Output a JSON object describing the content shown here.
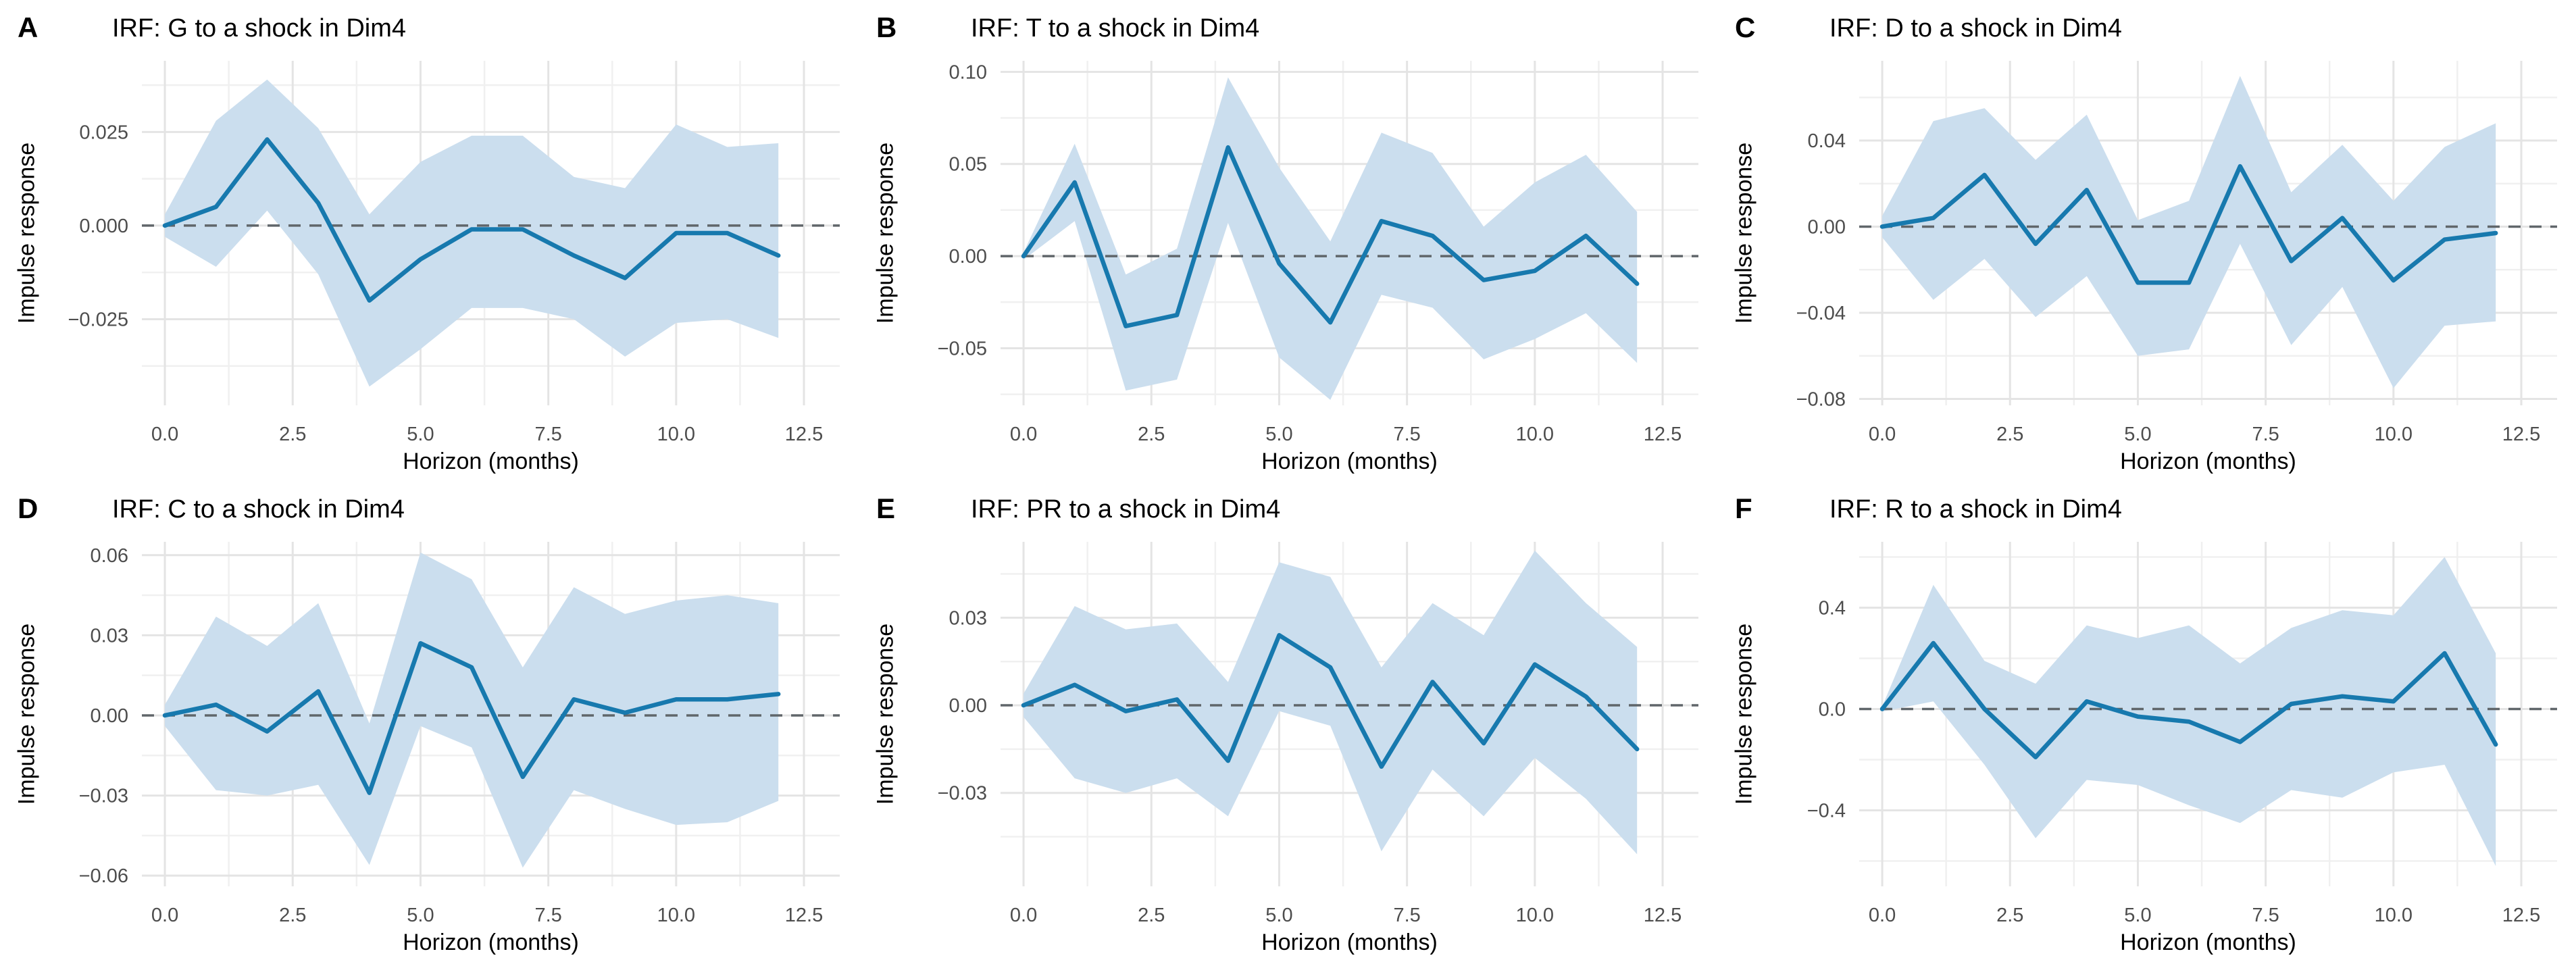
{
  "figure": {
    "background": "#ffffff",
    "line_color": "#1779ae",
    "ribbon_color": "#cbdeee",
    "zero_line_color": "#60666a",
    "grid_major_color": "#e4e4e4",
    "grid_minor_color": "#f0f0f0",
    "tick_label_color": "#4d4d4d",
    "text_color": "#000000",
    "xlabel": "Horizon (months)",
    "ylabel": "Impulse response"
  },
  "chart_data": [
    {
      "type": "line",
      "panel_label": "A",
      "title": "IRF: G to a shock in Dim4",
      "xlabel": "Horizon (months)",
      "ylabel": "Impulse response",
      "legend": "none",
      "grid": true,
      "zero_line": true,
      "x": [
        0,
        1,
        2,
        3,
        4,
        5,
        6,
        7,
        8,
        9,
        10,
        11,
        12
      ],
      "series": [
        {
          "name": "irf",
          "values": [
            0.0,
            0.005,
            0.023,
            0.006,
            -0.02,
            -0.009,
            -0.001,
            -0.001,
            -0.008,
            -0.014,
            -0.002,
            -0.002,
            -0.008
          ]
        },
        {
          "name": "ci_upper",
          "values": [
            0.003,
            0.028,
            0.039,
            0.026,
            0.003,
            0.017,
            0.024,
            0.024,
            0.013,
            0.01,
            0.027,
            0.021,
            0.022
          ]
        },
        {
          "name": "ci_lower",
          "values": [
            -0.003,
            -0.011,
            0.004,
            -0.013,
            -0.043,
            -0.033,
            -0.022,
            -0.022,
            -0.025,
            -0.035,
            -0.026,
            -0.025,
            -0.03
          ]
        }
      ],
      "xlim": [
        -0.45,
        13.2
      ],
      "ylim": [
        -0.048,
        0.044
      ],
      "x_ticks": {
        "values": [
          0,
          2.5,
          5,
          7.5,
          10,
          12.5
        ],
        "labels": [
          "0.0",
          "2.5",
          "5.0",
          "7.5",
          "10.0",
          "12.5"
        ]
      },
      "y_ticks": {
        "values": [
          0.025,
          0,
          -0.025
        ],
        "labels": [
          "0.025",
          "0.000",
          "−0.025"
        ]
      }
    },
    {
      "type": "line",
      "panel_label": "B",
      "title": "IRF: T to a shock in Dim4",
      "xlabel": "Horizon (months)",
      "ylabel": "Impulse response",
      "legend": "none",
      "grid": true,
      "zero_line": true,
      "x": [
        0,
        1,
        2,
        3,
        4,
        5,
        6,
        7,
        8,
        9,
        10,
        11,
        12
      ],
      "series": [
        {
          "name": "irf",
          "values": [
            0.0,
            0.04,
            -0.038,
            -0.032,
            0.059,
            -0.004,
            -0.036,
            0.019,
            0.011,
            -0.013,
            -0.008,
            0.011,
            -0.015
          ]
        },
        {
          "name": "ci_upper",
          "values": [
            0.002,
            0.061,
            -0.01,
            0.004,
            0.097,
            0.048,
            0.008,
            0.067,
            0.056,
            0.016,
            0.04,
            0.055,
            0.024
          ]
        },
        {
          "name": "ci_lower",
          "values": [
            -0.002,
            0.019,
            -0.073,
            -0.067,
            0.018,
            -0.055,
            -0.078,
            -0.021,
            -0.028,
            -0.056,
            -0.045,
            -0.031,
            -0.058
          ]
        }
      ],
      "xlim": [
        -0.45,
        13.2
      ],
      "ylim": [
        -0.081,
        0.106
      ],
      "x_ticks": {
        "values": [
          0,
          2.5,
          5,
          7.5,
          10,
          12.5
        ],
        "labels": [
          "0.0",
          "2.5",
          "5.0",
          "7.5",
          "10.0",
          "12.5"
        ]
      },
      "y_ticks": {
        "values": [
          0.1,
          0.05,
          0,
          -0.05
        ],
        "labels": [
          "0.10",
          "0.05",
          "0.00",
          "−0.05"
        ]
      }
    },
    {
      "type": "line",
      "panel_label": "C",
      "title": "IRF: D to a shock in Dim4",
      "xlabel": "Horizon (months)",
      "ylabel": "Impulse response",
      "legend": "none",
      "grid": true,
      "zero_line": true,
      "x": [
        0,
        1,
        2,
        3,
        4,
        5,
        6,
        7,
        8,
        9,
        10,
        11,
        12
      ],
      "series": [
        {
          "name": "irf",
          "values": [
            0.0,
            0.004,
            0.024,
            -0.008,
            0.017,
            -0.026,
            -0.026,
            0.028,
            -0.016,
            0.004,
            -0.025,
            -0.006,
            -0.003
          ]
        },
        {
          "name": "ci_upper",
          "values": [
            0.005,
            0.049,
            0.055,
            0.031,
            0.052,
            0.003,
            0.012,
            0.07,
            0.016,
            0.038,
            0.012,
            0.037,
            0.048
          ]
        },
        {
          "name": "ci_lower",
          "values": [
            -0.005,
            -0.034,
            -0.015,
            -0.042,
            -0.023,
            -0.06,
            -0.057,
            -0.008,
            -0.055,
            -0.028,
            -0.075,
            -0.046,
            -0.044
          ]
        }
      ],
      "xlim": [
        -0.45,
        13.2
      ],
      "ylim": [
        -0.083,
        0.077
      ],
      "x_ticks": {
        "values": [
          0,
          2.5,
          5,
          7.5,
          10,
          12.5
        ],
        "labels": [
          "0.0",
          "2.5",
          "5.0",
          "7.5",
          "10.0",
          "12.5"
        ]
      },
      "y_ticks": {
        "values": [
          0.04,
          0,
          -0.04,
          -0.08
        ],
        "labels": [
          "0.04",
          "0.00",
          "−0.04",
          "−0.08"
        ]
      }
    },
    {
      "type": "line",
      "panel_label": "D",
      "title": "IRF: C to a shock in Dim4",
      "xlabel": "Horizon (months)",
      "ylabel": "Impulse response",
      "legend": "none",
      "grid": true,
      "zero_line": true,
      "x": [
        0,
        1,
        2,
        3,
        4,
        5,
        6,
        7,
        8,
        9,
        10,
        11,
        12
      ],
      "series": [
        {
          "name": "irf",
          "values": [
            0.0,
            0.004,
            -0.006,
            0.009,
            -0.029,
            0.027,
            0.018,
            -0.023,
            0.006,
            0.001,
            0.006,
            0.006,
            0.008
          ]
        },
        {
          "name": "ci_upper",
          "values": [
            0.004,
            0.037,
            0.026,
            0.042,
            -0.003,
            0.061,
            0.051,
            0.018,
            0.048,
            0.038,
            0.043,
            0.045,
            0.042
          ]
        },
        {
          "name": "ci_lower",
          "values": [
            -0.004,
            -0.028,
            -0.03,
            -0.026,
            -0.056,
            -0.004,
            -0.012,
            -0.057,
            -0.028,
            -0.035,
            -0.041,
            -0.04,
            -0.032
          ]
        }
      ],
      "xlim": [
        -0.45,
        13.2
      ],
      "ylim": [
        -0.064,
        0.065
      ],
      "x_ticks": {
        "values": [
          0,
          2.5,
          5,
          7.5,
          10,
          12.5
        ],
        "labels": [
          "0.0",
          "2.5",
          "5.0",
          "7.5",
          "10.0",
          "12.5"
        ]
      },
      "y_ticks": {
        "values": [
          0.06,
          0.03,
          0,
          -0.03,
          -0.06
        ],
        "labels": [
          "0.06",
          "0.03",
          "0.00",
          "−0.03",
          "−0.06"
        ]
      }
    },
    {
      "type": "line",
      "panel_label": "E",
      "title": "IRF: PR to a shock in Dim4",
      "xlabel": "Horizon (months)",
      "ylabel": "Impulse response",
      "legend": "none",
      "grid": true,
      "zero_line": true,
      "x": [
        0,
        1,
        2,
        3,
        4,
        5,
        6,
        7,
        8,
        9,
        10,
        11,
        12
      ],
      "series": [
        {
          "name": "irf",
          "values": [
            0.0,
            0.007,
            -0.002,
            0.002,
            -0.019,
            0.024,
            0.013,
            -0.021,
            0.008,
            -0.013,
            0.014,
            0.003,
            -0.015
          ]
        },
        {
          "name": "ci_upper",
          "values": [
            0.004,
            0.034,
            0.026,
            0.028,
            0.008,
            0.049,
            0.044,
            0.013,
            0.035,
            0.024,
            0.053,
            0.035,
            0.02
          ]
        },
        {
          "name": "ci_lower",
          "values": [
            -0.004,
            -0.025,
            -0.03,
            -0.025,
            -0.038,
            -0.002,
            -0.007,
            -0.05,
            -0.022,
            -0.038,
            -0.018,
            -0.032,
            -0.051
          ]
        }
      ],
      "xlim": [
        -0.45,
        13.2
      ],
      "ylim": [
        -0.062,
        0.056
      ],
      "x_ticks": {
        "values": [
          0,
          2.5,
          5,
          7.5,
          10,
          12.5
        ],
        "labels": [
          "0.0",
          "2.5",
          "5.0",
          "7.5",
          "10.0",
          "12.5"
        ]
      },
      "y_ticks": {
        "values": [
          0.03,
          0,
          -0.03
        ],
        "labels": [
          "0.03",
          "0.00",
          "−0.03"
        ]
      }
    },
    {
      "type": "line",
      "panel_label": "F",
      "title": "IRF: R to a shock in Dim4",
      "xlabel": "Horizon (months)",
      "ylabel": "Impulse response",
      "legend": "none",
      "grid": true,
      "zero_line": true,
      "x": [
        0,
        1,
        2,
        3,
        4,
        5,
        6,
        7,
        8,
        9,
        10,
        11,
        12
      ],
      "series": [
        {
          "name": "irf",
          "values": [
            0.0,
            0.26,
            0.0,
            -0.19,
            0.03,
            -0.03,
            -0.05,
            -0.13,
            0.02,
            0.05,
            0.03,
            0.22,
            -0.14
          ]
        },
        {
          "name": "ci_upper",
          "values": [
            0.01,
            0.49,
            0.19,
            0.1,
            0.33,
            0.28,
            0.33,
            0.18,
            0.32,
            0.39,
            0.37,
            0.6,
            0.22
          ]
        },
        {
          "name": "ci_lower",
          "values": [
            -0.01,
            0.03,
            -0.22,
            -0.51,
            -0.28,
            -0.3,
            -0.38,
            -0.45,
            -0.32,
            -0.35,
            -0.25,
            -0.22,
            -0.62
          ]
        }
      ],
      "xlim": [
        -0.45,
        13.2
      ],
      "ylim": [
        -0.7,
        0.66
      ],
      "x_ticks": {
        "values": [
          0,
          2.5,
          5,
          7.5,
          10,
          12.5
        ],
        "labels": [
          "0.0",
          "2.5",
          "5.0",
          "7.5",
          "10.0",
          "12.5"
        ]
      },
      "y_ticks": {
        "values": [
          0.4,
          0,
          -0.4
        ],
        "labels": [
          "0.4",
          "0.0",
          "−0.4"
        ]
      }
    }
  ]
}
